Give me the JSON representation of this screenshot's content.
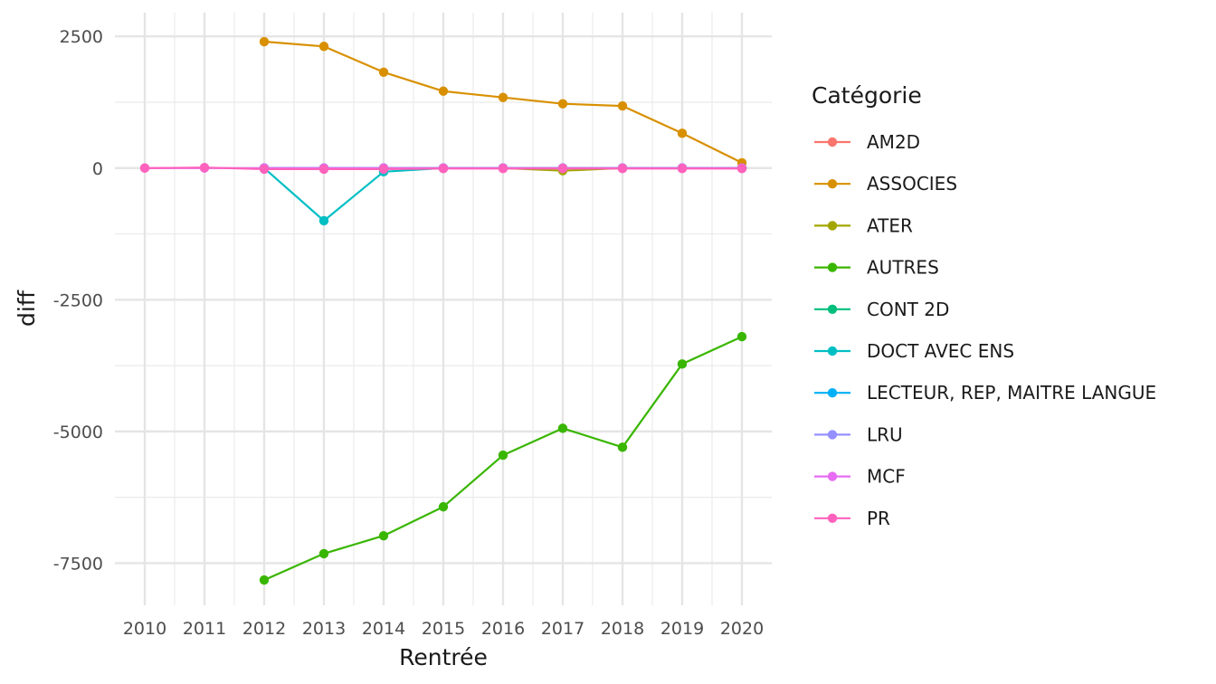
{
  "chart_data": {
    "type": "line",
    "xlabel": "Rentrée",
    "ylabel": "diff",
    "xlim": [
      2009.5,
      2020.5
    ],
    "ylim": [
      -8300,
      2950
    ],
    "x_ticks": [
      2010,
      2011,
      2012,
      2013,
      2014,
      2015,
      2016,
      2017,
      2018,
      2019,
      2020
    ],
    "y_ticks": [
      2500,
      0,
      -2500,
      -5000,
      -7500
    ],
    "y_tick_labels": [
      "2500",
      "0",
      "-2500",
      "-5000",
      "-7500"
    ],
    "grid": true,
    "legend": {
      "title": "Catégorie",
      "position": "right"
    },
    "series": [
      {
        "name": "AM2D",
        "color": "#F8766D",
        "x": [
          2012,
          2013,
          2014,
          2015,
          2016,
          2017,
          2018,
          2019,
          2020
        ],
        "y": [
          0,
          0,
          0,
          0,
          0,
          0,
          0,
          0,
          0
        ]
      },
      {
        "name": "ASSOCIES",
        "color": "#D89000",
        "x": [
          2012,
          2013,
          2014,
          2015,
          2016,
          2017,
          2018,
          2019,
          2020
        ],
        "y": [
          2400,
          2310,
          1820,
          1460,
          1340,
          1220,
          1180,
          660,
          100
        ]
      },
      {
        "name": "ATER",
        "color": "#A3A500",
        "x": [
          2012,
          2013,
          2014,
          2015,
          2016,
          2017,
          2018,
          2019,
          2020
        ],
        "y": [
          0,
          0,
          0,
          0,
          0,
          -50,
          0,
          0,
          0
        ]
      },
      {
        "name": "AUTRES",
        "color": "#39B600",
        "x": [
          2012,
          2013,
          2014,
          2015,
          2016,
          2017,
          2018,
          2019,
          2020
        ],
        "y": [
          -7820,
          -7320,
          -6980,
          -6430,
          -5450,
          -4940,
          -5300,
          -3720,
          -3200
        ]
      },
      {
        "name": "CONT 2D",
        "color": "#00BF7D",
        "x": [
          2012,
          2013,
          2014,
          2015,
          2016,
          2017,
          2018,
          2019,
          2020
        ],
        "y": [
          0,
          0,
          0,
          0,
          0,
          0,
          0,
          0,
          0
        ]
      },
      {
        "name": "DOCT AVEC ENS",
        "color": "#00BFC4",
        "x": [
          2012,
          2013,
          2014,
          2015,
          2016,
          2017,
          2018,
          2019,
          2020
        ],
        "y": [
          0,
          -1000,
          -70,
          0,
          0,
          0,
          0,
          0,
          0
        ]
      },
      {
        "name": "LECTEUR, REP, MAITRE LANGUE",
        "color": "#00B0F6",
        "x": [
          2012,
          2013,
          2014,
          2015,
          2016,
          2017,
          2018,
          2019,
          2020
        ],
        "y": [
          0,
          0,
          0,
          0,
          0,
          0,
          0,
          0,
          0
        ]
      },
      {
        "name": "LRU",
        "color": "#9590FF",
        "x": [
          2012,
          2013,
          2014,
          2015,
          2016,
          2017,
          2018,
          2019,
          2020
        ],
        "y": [
          0,
          0,
          0,
          0,
          0,
          0,
          0,
          0,
          0
        ]
      },
      {
        "name": "MCF",
        "color": "#E76BF3",
        "x": [
          2010,
          2011,
          2012,
          2013,
          2014,
          2015,
          2016,
          2017,
          2018,
          2019,
          2020
        ],
        "y": [
          0,
          0,
          0,
          0,
          0,
          0,
          0,
          0,
          0,
          0,
          0
        ]
      },
      {
        "name": "PR",
        "color": "#FF62BC",
        "x": [
          2010,
          2011,
          2012,
          2013,
          2014,
          2015,
          2016,
          2017,
          2018,
          2019,
          2020
        ],
        "y": [
          0,
          10,
          -20,
          -20,
          -20,
          -10,
          -10,
          -10,
          -10,
          -10,
          -10
        ]
      }
    ]
  }
}
